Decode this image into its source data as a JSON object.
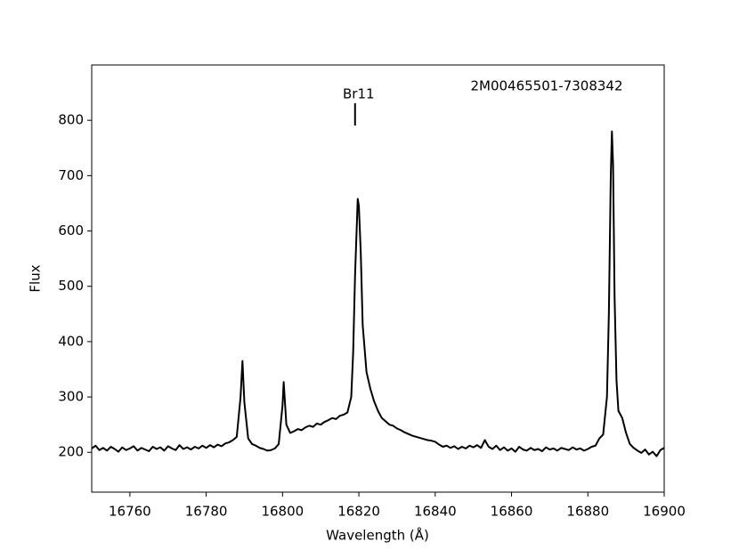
{
  "chart_data": {
    "type": "line",
    "title": "2M00465501-7308342",
    "x_label": "Wavelength (Å)",
    "y_label": "Flux",
    "color": "#000000",
    "xlim": [
      16750,
      16900
    ],
    "ylim": [
      128,
      900
    ],
    "xticks": [
      16760,
      16780,
      16800,
      16820,
      16840,
      16860,
      16880,
      16900
    ],
    "yticks": [
      200,
      300,
      400,
      500,
      600,
      700,
      800
    ],
    "annotations": [
      {
        "text": "Br11",
        "x": 16819
      }
    ],
    "x": [
      16750,
      16751,
      16752,
      16753,
      16754,
      16755,
      16756,
      16757,
      16758,
      16759,
      16760,
      16761,
      16762,
      16763,
      16764,
      16765,
      16766,
      16767,
      16768,
      16769,
      16770,
      16771,
      16772,
      16773,
      16774,
      16775,
      16776,
      16777,
      16778,
      16779,
      16780,
      16781,
      16782,
      16783,
      16784,
      16785,
      16786,
      16787,
      16788,
      16789,
      16789.5,
      16790,
      16791,
      16792,
      16793,
      16794,
      16795,
      16796,
      16797,
      16798,
      16799,
      16800,
      16800.3,
      16801,
      16802,
      16803,
      16804,
      16805,
      16806,
      16807,
      16808,
      16809,
      16810,
      16811,
      16812,
      16813,
      16814,
      16815,
      16816,
      16817,
      16818,
      16818.5,
      16819,
      16819.7,
      16820,
      16820.5,
      16821,
      16822,
      16823,
      16824,
      16825,
      16826,
      16827,
      16828,
      16829,
      16830,
      16831,
      16832,
      16833,
      16834,
      16835,
      16836,
      16837,
      16838,
      16839,
      16840,
      16841,
      16842,
      16843,
      16844,
      16845,
      16846,
      16847,
      16848,
      16849,
      16850,
      16851,
      16852,
      16853,
      16854,
      16855,
      16856,
      16857,
      16858,
      16859,
      16860,
      16861,
      16862,
      16863,
      16864,
      16865,
      16866,
      16867,
      16868,
      16869,
      16870,
      16871,
      16872,
      16873,
      16874,
      16875,
      16876,
      16877,
      16878,
      16879,
      16880,
      16881,
      16882,
      16883,
      16884,
      16885,
      16885.5,
      16886,
      16886.3,
      16886.6,
      16887,
      16887.5,
      16888,
      16889,
      16890,
      16891,
      16892,
      16893,
      16894,
      16895,
      16896,
      16897,
      16898,
      16899,
      16900
    ],
    "values": [
      207,
      212,
      204,
      208,
      203,
      210,
      206,
      201,
      209,
      204,
      207,
      211,
      203,
      208,
      205,
      202,
      210,
      206,
      209,
      203,
      211,
      207,
      204,
      213,
      206,
      209,
      205,
      210,
      207,
      212,
      208,
      213,
      209,
      214,
      211,
      216,
      218,
      222,
      228,
      300,
      365,
      290,
      225,
      215,
      212,
      208,
      206,
      203,
      204,
      207,
      215,
      285,
      327,
      250,
      235,
      238,
      242,
      240,
      245,
      248,
      246,
      252,
      250,
      255,
      258,
      262,
      260,
      266,
      268,
      272,
      300,
      380,
      520,
      658,
      645,
      560,
      430,
      345,
      315,
      292,
      275,
      262,
      256,
      250,
      248,
      243,
      240,
      236,
      233,
      230,
      228,
      226,
      224,
      222,
      221,
      219,
      214,
      210,
      212,
      208,
      211,
      206,
      210,
      207,
      212,
      209,
      213,
      208,
      222,
      210,
      206,
      212,
      204,
      209,
      203,
      207,
      201,
      210,
      205,
      203,
      208,
      204,
      206,
      202,
      209,
      205,
      207,
      203,
      208,
      206,
      204,
      209,
      205,
      207,
      203,
      206,
      210,
      212,
      225,
      232,
      300,
      450,
      700,
      780,
      720,
      480,
      330,
      275,
      262,
      235,
      215,
      208,
      203,
      199,
      205,
      196,
      201,
      193,
      204,
      208
    ]
  }
}
